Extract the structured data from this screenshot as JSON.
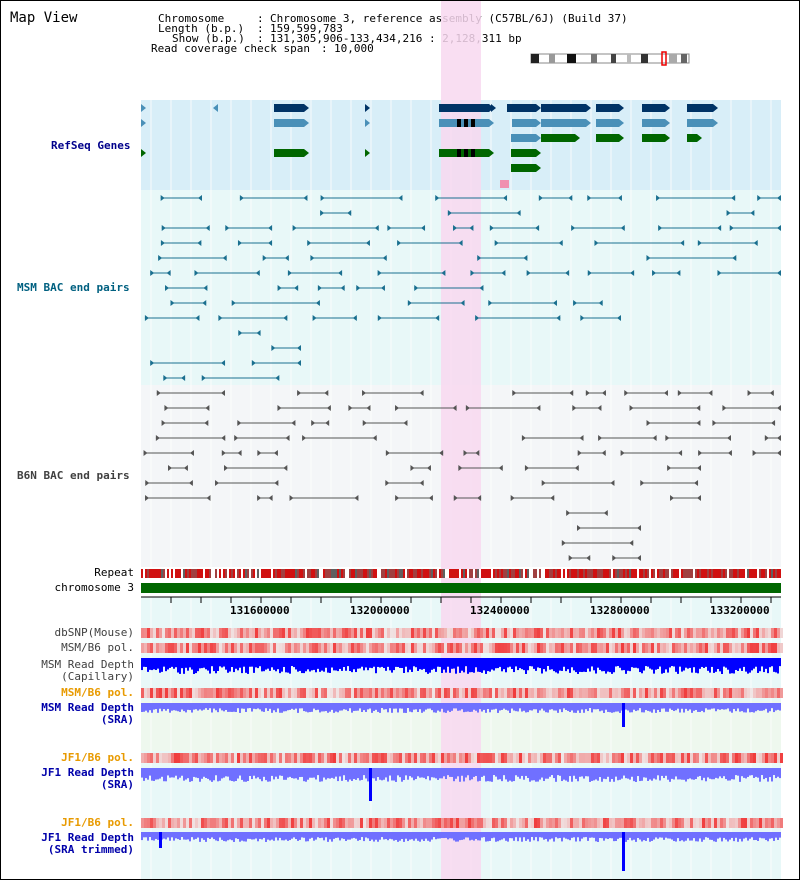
{
  "title": "Map View",
  "info": {
    "chromosome_key": "Chromosome",
    "chromosome_val": "Chromosome 3, reference assembly (C57BL/6J) (Build 37)",
    "length_key": "Length (b.p.)",
    "length_val": "159,599,783",
    "show_key": "Show (b.p.)",
    "show_val": "131,305,906-133,434,216 : 2,128,311 bp",
    "coverage_key": "Read coverage check span",
    "coverage_val": "10,000"
  },
  "tracks": {
    "refseq": "RefSeq Genes",
    "msm_bac": "MSM BAC end pairs",
    "b6n_bac": "B6N BAC end pairs",
    "repeat": "Repeat",
    "chromosome": "chromosome 3",
    "dbsnp": "dbSNP(Mouse)",
    "msm_b6_pol_1": "MSM/B6 pol.",
    "msm_read_depth_cap_1": "MSM Read Depth",
    "msm_read_depth_cap_2": "(Capillary)",
    "msm_b6_pol_2": "MSM/B6 pol.",
    "msm_read_depth_sra_1": "MSM Read Depth",
    "msm_read_depth_sra_2": "(SRA)",
    "jf1_b6_pol_1": "JF1/B6 pol.",
    "jf1_read_depth_sra_1": "JF1 Read Depth",
    "jf1_read_depth_sra_2": "(SRA)",
    "jf1_b6_pol_2": "JF1/B6 pol.",
    "jf1_read_depth_trim_1": "JF1 Read Depth",
    "jf1_read_depth_trim_2": "(SRA trimmed)"
  },
  "axis_ticks": [
    "131600000",
    "132000000",
    "132400000",
    "132800000",
    "133200000"
  ],
  "colors": {
    "refseq_bg": "#d8eef8",
    "bac_bg": "#e8f8f8",
    "b6n_bg": "#f4f6f8",
    "highlight": "#f8d8f0",
    "gene_dark": "#003366",
    "gene_mid": "#4a90b8",
    "gene_green": "#006600",
    "chromosome_bar": "#006600",
    "depth_blue": "#0000ff",
    "depth_light": "#7070ff"
  }
}
